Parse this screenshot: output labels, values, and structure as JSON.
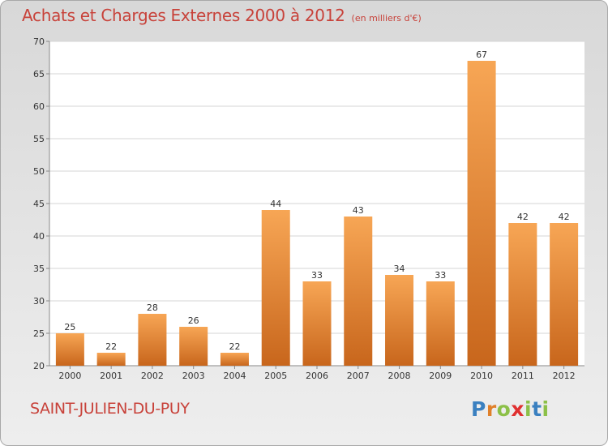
{
  "header": {
    "title": "Achats et Charges Externes 2000 à 2012",
    "subtitle": "(en milliers d'€)"
  },
  "footer": {
    "commune": "SAINT-JULIEN-DU-PUY",
    "logo": "Proxiti"
  },
  "colors": {
    "title": "#c8423a",
    "bar_top": "#f7a655",
    "bar_bottom": "#c8661c",
    "logo_letters": [
      "#3a80c0",
      "#e0802a",
      "#8cc048",
      "#e03030",
      "#8cc048",
      "#3a80c0",
      "#8cc048"
    ]
  },
  "chart_data": {
    "type": "bar",
    "categories": [
      "2000",
      "2001",
      "2002",
      "2003",
      "2004",
      "2005",
      "2006",
      "2007",
      "2008",
      "2009",
      "2010",
      "2011",
      "2012"
    ],
    "values": [
      25,
      22,
      28,
      26,
      22,
      44,
      33,
      43,
      34,
      33,
      67,
      42,
      42
    ],
    "ylim": [
      20,
      70
    ],
    "yticks": [
      20,
      25,
      30,
      35,
      40,
      45,
      50,
      55,
      60,
      65,
      70
    ],
    "grid": true,
    "data_labels": true,
    "title": "Achats et Charges Externes 2000 à 2012",
    "xlabel": "",
    "ylabel": ""
  }
}
